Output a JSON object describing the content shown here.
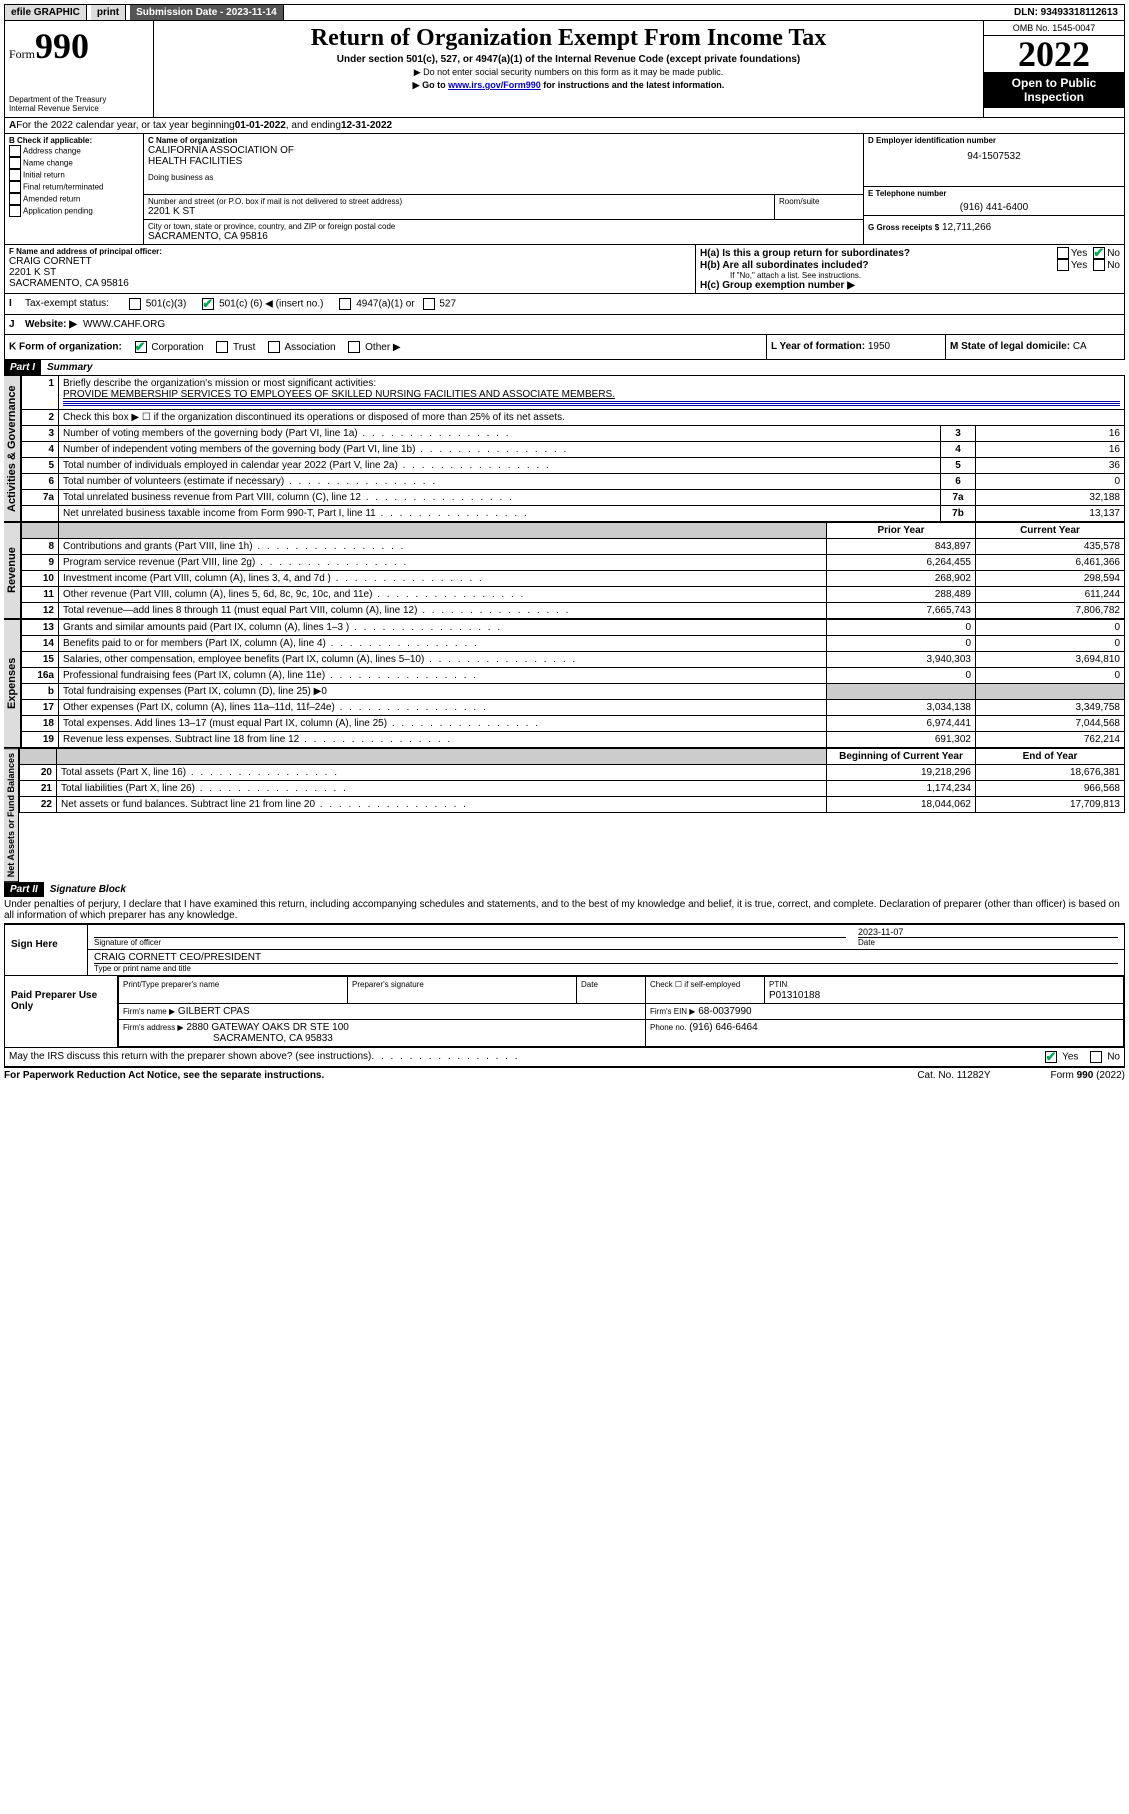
{
  "topbar": {
    "efile": "efile GRAPHIC",
    "print": "print",
    "submission": "Submission Date - 2023-11-14",
    "dln": "DLN: 93493318112613"
  },
  "header": {
    "form_prefix": "Form",
    "form_number": "990",
    "dept": "Department of the Treasury",
    "irs": "Internal Revenue Service",
    "title": "Return of Organization Exempt From Income Tax",
    "subtitle": "Under section 501(c), 527, or 4947(a)(1) of the Internal Revenue Code (except private foundations)",
    "note1": "▶ Do not enter social security numbers on this form as it may be made public.",
    "note2_pre": "▶ Go to ",
    "note2_link": "www.irs.gov/Form990",
    "note2_post": " for instructions and the latest information.",
    "omb": "OMB No. 1545-0047",
    "year": "2022",
    "open": "Open to Public Inspection"
  },
  "lineA": {
    "text_pre": "For the 2022 calendar year, or tax year beginning ",
    "begin": "01-01-2022",
    "mid": " , and ending ",
    "end": "12-31-2022"
  },
  "boxB": {
    "label": "B Check if applicable:",
    "opts": [
      "Address change",
      "Name change",
      "Initial return",
      "Final return/terminated",
      "Amended return",
      "Application pending"
    ]
  },
  "boxC": {
    "label": "C Name of organization",
    "name1": "CALIFORNIA ASSOCIATION OF",
    "name2": "HEALTH FACILITIES",
    "dba_label": "Doing business as",
    "street_label": "Number and street (or P.O. box if mail is not delivered to street address)",
    "room_label": "Room/suite",
    "street": "2201 K ST",
    "city_label": "City or town, state or province, country, and ZIP or foreign postal code",
    "city": "SACRAMENTO, CA  95816"
  },
  "boxD": {
    "label": "D Employer identification number",
    "value": "94-1507532"
  },
  "boxE": {
    "label": "E Telephone number",
    "value": "(916) 441-6400"
  },
  "boxG": {
    "label": "G Gross receipts $",
    "value": "12,711,266"
  },
  "boxF": {
    "label": "F Name and address of principal officer:",
    "name": "CRAIG CORNETT",
    "street": "2201 K ST",
    "city": "SACRAMENTO, CA  95816"
  },
  "boxH": {
    "a": "H(a)  Is this a group return for subordinates?",
    "b": "H(b)  Are all subordinates included?",
    "b_note": "If \"No,\" attach a list. See instructions.",
    "c": "H(c)  Group exemption number ▶",
    "yes": "Yes",
    "no": "No"
  },
  "lineI": {
    "label": "Tax-exempt status:",
    "c3": "501(c)(3)",
    "c_pre": "501(c) (",
    "c_num": "6",
    "c_post": ") ◀ (insert no.)",
    "a1": "4947(a)(1) or",
    "s527": "527"
  },
  "lineJ": {
    "label": "Website: ▶",
    "value": "WWW.CAHF.ORG"
  },
  "lineK": {
    "label": "K Form of organization:",
    "corp": "Corporation",
    "trust": "Trust",
    "assoc": "Association",
    "other": "Other ▶"
  },
  "lineL": {
    "label": "L Year of formation:",
    "value": "1950"
  },
  "lineM": {
    "label": "M State of legal domicile:",
    "value": "CA"
  },
  "part1": {
    "header": "Part I",
    "title": "Summary",
    "q1_label": "Briefly describe the organization's mission or most significant activities:",
    "q1_text": "PROVIDE MEMBERSHIP SERVICES TO EMPLOYEES OF SKILLED NURSING FACILITIES AND ASSOCIATE MEMBERS.",
    "q2": "Check this box ▶ ☐  if the organization discontinued its operations or disposed of more than 25% of its net assets.",
    "vert_gov": "Activities & Governance",
    "vert_rev": "Revenue",
    "vert_exp": "Expenses",
    "vert_net": "Net Assets or Fund Balances",
    "rows_gov": [
      {
        "n": "3",
        "d": "Number of voting members of the governing body (Part VI, line 1a)",
        "b": "3",
        "v": "16"
      },
      {
        "n": "4",
        "d": "Number of independent voting members of the governing body (Part VI, line 1b)",
        "b": "4",
        "v": "16"
      },
      {
        "n": "5",
        "d": "Total number of individuals employed in calendar year 2022 (Part V, line 2a)",
        "b": "5",
        "v": "36"
      },
      {
        "n": "6",
        "d": "Total number of volunteers (estimate if necessary)",
        "b": "6",
        "v": "0"
      },
      {
        "n": "7a",
        "d": "Total unrelated business revenue from Part VIII, column (C), line 12",
        "b": "7a",
        "v": "32,188"
      },
      {
        "n": "",
        "d": "Net unrelated business taxable income from Form 990-T, Part I, line 11",
        "b": "7b",
        "v": "13,137"
      }
    ],
    "pyr_head": "Prior Year",
    "cyr_head": "Current Year",
    "rows_rev": [
      {
        "n": "8",
        "d": "Contributions and grants (Part VIII, line 1h)",
        "p": "843,897",
        "c": "435,578"
      },
      {
        "n": "9",
        "d": "Program service revenue (Part VIII, line 2g)",
        "p": "6,264,455",
        "c": "6,461,366"
      },
      {
        "n": "10",
        "d": "Investment income (Part VIII, column (A), lines 3, 4, and 7d )",
        "p": "268,902",
        "c": "298,594"
      },
      {
        "n": "11",
        "d": "Other revenue (Part VIII, column (A), lines 5, 6d, 8c, 9c, 10c, and 11e)",
        "p": "288,489",
        "c": "611,244"
      },
      {
        "n": "12",
        "d": "Total revenue—add lines 8 through 11 (must equal Part VIII, column (A), line 12)",
        "p": "7,665,743",
        "c": "7,806,782"
      }
    ],
    "rows_exp": [
      {
        "n": "13",
        "d": "Grants and similar amounts paid (Part IX, column (A), lines 1–3 )",
        "p": "0",
        "c": "0"
      },
      {
        "n": "14",
        "d": "Benefits paid to or for members (Part IX, column (A), line 4)",
        "p": "0",
        "c": "0"
      },
      {
        "n": "15",
        "d": "Salaries, other compensation, employee benefits (Part IX, column (A), lines 5–10)",
        "p": "3,940,303",
        "c": "3,694,810"
      },
      {
        "n": "16a",
        "d": "Professional fundraising fees (Part IX, column (A), line 11e)",
        "p": "0",
        "c": "0"
      },
      {
        "n": "b",
        "d": "Total fundraising expenses (Part IX, column (D), line 25) ▶0",
        "p": "",
        "c": "",
        "shade": true
      },
      {
        "n": "17",
        "d": "Other expenses (Part IX, column (A), lines 11a–11d, 11f–24e)",
        "p": "3,034,138",
        "c": "3,349,758"
      },
      {
        "n": "18",
        "d": "Total expenses. Add lines 13–17 (must equal Part IX, column (A), line 25)",
        "p": "6,974,441",
        "c": "7,044,568"
      },
      {
        "n": "19",
        "d": "Revenue less expenses. Subtract line 18 from line 12",
        "p": "691,302",
        "c": "762,214"
      }
    ],
    "boy_head": "Beginning of Current Year",
    "eoy_head": "End of Year",
    "rows_net": [
      {
        "n": "20",
        "d": "Total assets (Part X, line 16)",
        "p": "19,218,296",
        "c": "18,676,381"
      },
      {
        "n": "21",
        "d": "Total liabilities (Part X, line 26)",
        "p": "1,174,234",
        "c": "966,568"
      },
      {
        "n": "22",
        "d": "Net assets or fund balances. Subtract line 21 from line 20",
        "p": "18,044,062",
        "c": "17,709,813"
      }
    ]
  },
  "part2": {
    "header": "Part II",
    "title": "Signature Block",
    "decl": "Under penalties of perjury, I declare that I have examined this return, including accompanying schedules and statements, and to the best of my knowledge and belief, it is true, correct, and complete. Declaration of preparer (other than officer) is based on all information of which preparer has any knowledge.",
    "sign_here": "Sign Here",
    "sig_officer": "Signature of officer",
    "sig_date_label": "Date",
    "sig_date": "2023-11-07",
    "officer_name": "CRAIG CORNETT CEO/PRESIDENT",
    "officer_sub": "Type or print name and title",
    "paid": "Paid Preparer Use Only",
    "prep_name_label": "Print/Type preparer's name",
    "prep_sig_label": "Preparer's signature",
    "date_label": "Date",
    "check_self": "Check ☐ if self-employed",
    "ptin_label": "PTIN",
    "ptin": "P01310188",
    "firm_name_label": "Firm's name    ▶",
    "firm_name": "GILBERT CPAS",
    "firm_ein_label": "Firm's EIN ▶",
    "firm_ein": "68-0037990",
    "firm_addr_label": "Firm's address ▶",
    "firm_addr1": "2880 GATEWAY OAKS DR STE 100",
    "firm_addr2": "SACRAMENTO, CA 95833",
    "phone_label": "Phone no.",
    "phone": "(916) 646-6464",
    "discuss": "May the IRS discuss this return with the preparer shown above? (see instructions)",
    "yes": "Yes",
    "no": "No"
  },
  "footer": {
    "left": "For Paperwork Reduction Act Notice, see the separate instructions.",
    "mid": "Cat. No. 11282Y",
    "right": "Form 990 (2022)"
  }
}
